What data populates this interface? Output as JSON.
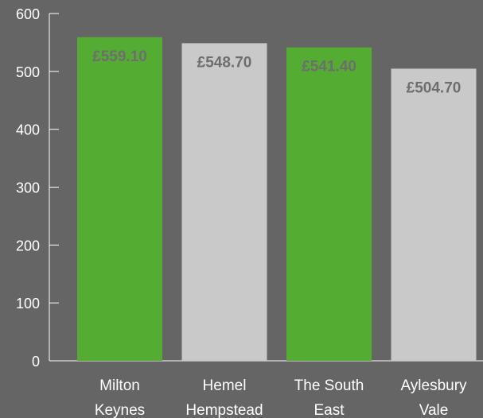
{
  "chart_data": {
    "type": "bar",
    "categories": [
      [
        "Milton",
        "Keynes"
      ],
      [
        "Hemel",
        "Hempstead"
      ],
      [
        "The South",
        "East"
      ],
      [
        "Aylesbury",
        "Vale"
      ]
    ],
    "values": [
      559.1,
      548.7,
      541.4,
      504.7
    ],
    "value_labels": [
      "£559.10",
      "£548.70",
      "£541.40",
      "£504.70"
    ],
    "bar_colors": [
      "#55ac33",
      "#c9c9c9",
      "#55ac33",
      "#c9c9c9"
    ],
    "ylim": [
      0,
      600
    ],
    "yticks": [
      0,
      100,
      200,
      300,
      400,
      500,
      600
    ],
    "title": "",
    "xlabel": "",
    "ylabel": "",
    "grid": false,
    "colors": {
      "background": "#656565",
      "axis": "#ffffff",
      "value_label": "#6e6e6e"
    }
  }
}
